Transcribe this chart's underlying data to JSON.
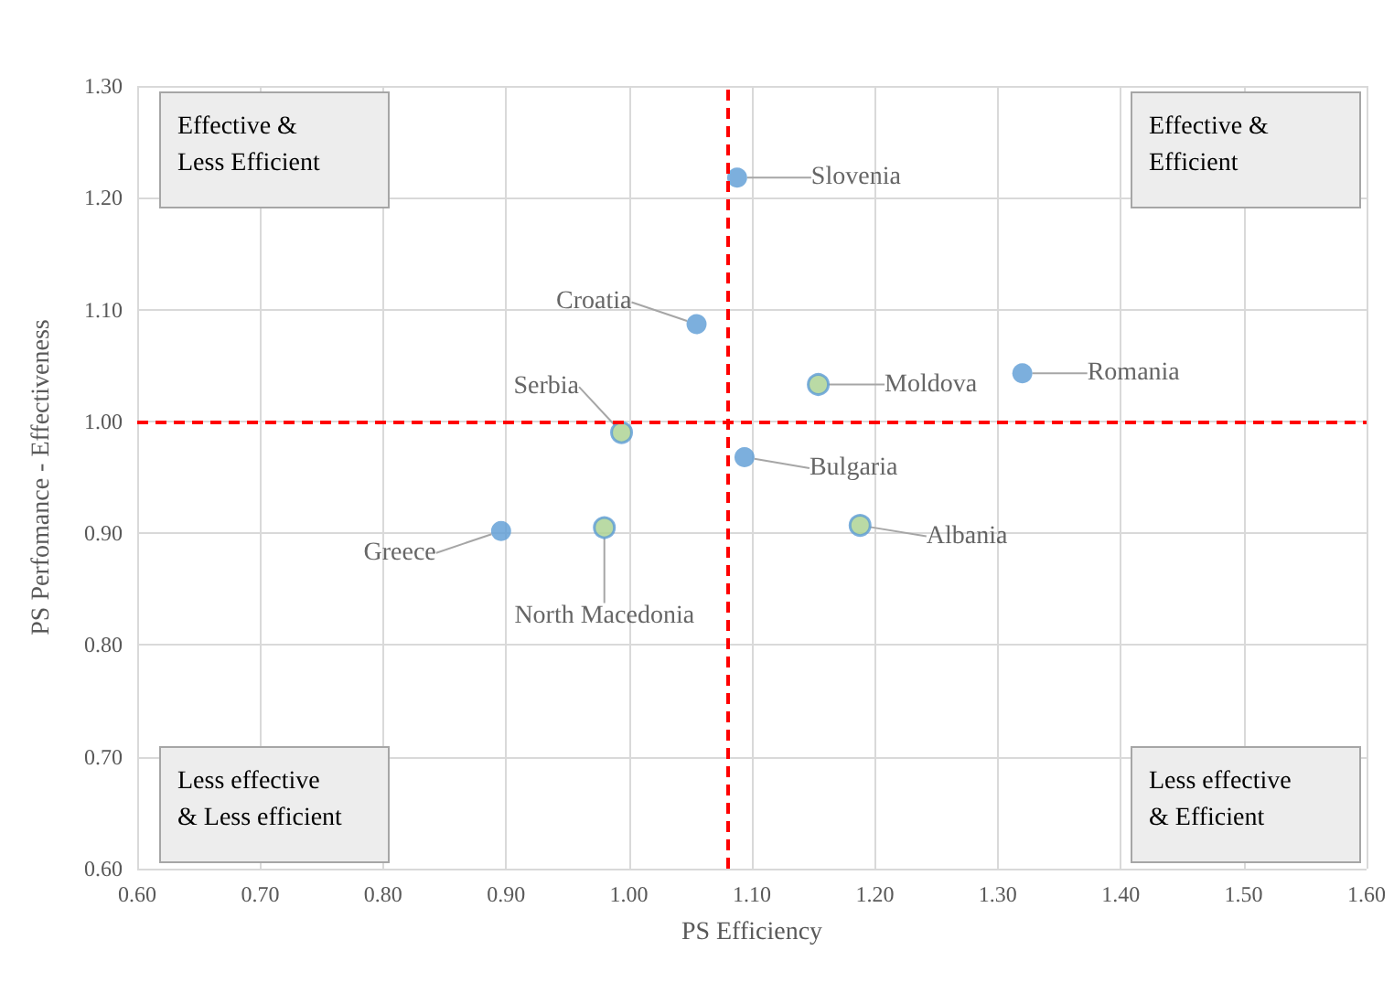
{
  "chart_data": {
    "type": "scatter",
    "xlabel": "PS Efficiency",
    "ylabel": "PS Perfomance - Effectiveness",
    "series": [
      {
        "color": "#5b9bd5",
        "x": [
          1.088,
          1.055,
          1.32,
          1.094,
          0.896
        ],
        "values": [
          1.218,
          1.087,
          1.043,
          0.968,
          0.902
        ]
      },
      {
        "color": "#a9d18e",
        "x": [
          1.154,
          0.994,
          1.188,
          0.98
        ],
        "values": [
          1.033,
          0.99,
          0.907,
          0.905
        ]
      }
    ],
    "xlim": [
      0.6,
      1.6
    ],
    "xticks": [
      {
        "value": 0.6,
        "label": "0.60"
      },
      {
        "value": 0.7,
        "label": "0.70"
      },
      {
        "value": 0.8,
        "label": "0.80"
      },
      {
        "value": 0.9,
        "label": "0.90"
      },
      {
        "value": 1.0,
        "label": "1.00"
      },
      {
        "value": 1.1,
        "label": "1.10"
      },
      {
        "value": 1.2,
        "label": "1.20"
      },
      {
        "value": 1.3,
        "label": "1.30"
      },
      {
        "value": 1.4,
        "label": "1.40"
      },
      {
        "value": 1.5,
        "label": "1.50"
      },
      {
        "value": 1.6,
        "label": "1.60"
      }
    ],
    "ylim": [
      0.6,
      1.3
    ],
    "yticks": [
      {
        "value": 0.6,
        "label": "0.60"
      },
      {
        "value": 0.7,
        "label": "0.70"
      },
      {
        "value": 0.8,
        "label": "0.80"
      },
      {
        "value": 0.9,
        "label": "0.90"
      },
      {
        "value": 1.0,
        "label": "1.00"
      },
      {
        "value": 1.1,
        "label": "1.10"
      },
      {
        "value": 1.2,
        "label": "1.20"
      },
      {
        "value": 1.3,
        "label": "1.30"
      }
    ],
    "ref_lines": [
      {
        "axis": "x",
        "value": 1.082,
        "color": "#ff0000",
        "line_style": "dashed"
      },
      {
        "axis": "y",
        "value": 1.0,
        "color": "#ff0000",
        "line_style": "dashed"
      }
    ],
    "annotations": [
      "Effective &\nLess Efficient",
      "Effective &\nEfficient",
      "Less effective\n& Less efficient",
      "Less effective\n& Efficient",
      {
        "text": "Slovenia",
        "x": 1.088,
        "y": 1.218
      },
      {
        "text": "Croatia",
        "x": 1.055,
        "y": 1.087
      },
      {
        "text": "Romania",
        "x": 1.32,
        "y": 1.043
      },
      {
        "text": "Bulgaria",
        "x": 1.094,
        "y": 0.968
      },
      {
        "text": "Greece",
        "x": 0.896,
        "y": 0.902
      },
      {
        "text": "Moldova",
        "x": 1.154,
        "y": 1.033
      },
      {
        "text": "Serbia",
        "x": 0.994,
        "y": 0.99
      },
      {
        "text": "Albania",
        "x": 1.188,
        "y": 0.907
      },
      {
        "text": "North Macedonia",
        "x": 0.98,
        "y": 0.905
      }
    ],
    "grid": true,
    "marker": "circle"
  }
}
